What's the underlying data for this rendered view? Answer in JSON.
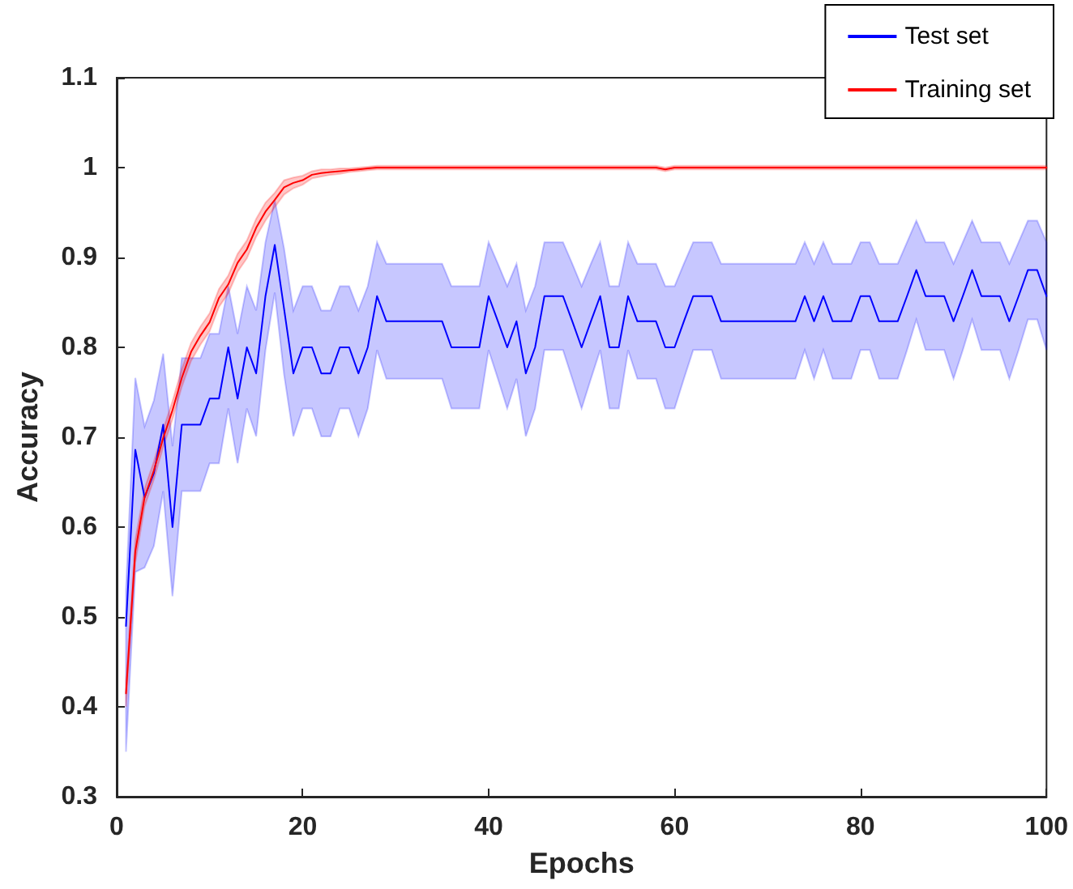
{
  "chart_data": {
    "type": "line",
    "xlabel": "Epochs",
    "ylabel": "Accuracy",
    "x": [
      1,
      2,
      3,
      4,
      5,
      6,
      7,
      8,
      9,
      10,
      11,
      12,
      13,
      14,
      15,
      16,
      17,
      18,
      19,
      20,
      21,
      22,
      23,
      24,
      25,
      26,
      27,
      28,
      29,
      30,
      31,
      32,
      33,
      34,
      35,
      36,
      37,
      38,
      39,
      40,
      41,
      42,
      43,
      44,
      45,
      46,
      47,
      48,
      49,
      50,
      51,
      52,
      53,
      54,
      55,
      56,
      57,
      58,
      59,
      60,
      61,
      62,
      63,
      64,
      65,
      66,
      67,
      68,
      69,
      70,
      71,
      72,
      73,
      74,
      75,
      76,
      77,
      78,
      79,
      80,
      81,
      82,
      83,
      84,
      85,
      86,
      87,
      88,
      89,
      90,
      91,
      92,
      93,
      94,
      95,
      96,
      97,
      98,
      99,
      100
    ],
    "series": [
      {
        "name": "Test set",
        "color": "#0000ff",
        "values": [
          0.49,
          0.686,
          0.633,
          0.66,
          0.714,
          0.6,
          0.714,
          0.714,
          0.714,
          0.743,
          0.743,
          0.8,
          0.743,
          0.8,
          0.771,
          0.857,
          0.914,
          0.843,
          0.771,
          0.8,
          0.8,
          0.771,
          0.771,
          0.8,
          0.8,
          0.771,
          0.8,
          0.857,
          0.829,
          0.829,
          0.829,
          0.829,
          0.829,
          0.829,
          0.829,
          0.8,
          0.8,
          0.8,
          0.8,
          0.857,
          0.829,
          0.8,
          0.829,
          0.771,
          0.8,
          0.857,
          0.857,
          0.857,
          0.829,
          0.8,
          0.829,
          0.857,
          0.8,
          0.8,
          0.857,
          0.829,
          0.829,
          0.829,
          0.8,
          0.8,
          0.829,
          0.857,
          0.857,
          0.857,
          0.829,
          0.829,
          0.829,
          0.829,
          0.829,
          0.829,
          0.829,
          0.829,
          0.829,
          0.857,
          0.829,
          0.857,
          0.829,
          0.829,
          0.829,
          0.857,
          0.857,
          0.829,
          0.829,
          0.829,
          0.857,
          0.886,
          0.857,
          0.857,
          0.857,
          0.829,
          0.857,
          0.886,
          0.857,
          0.857,
          0.857,
          0.829,
          0.857,
          0.886,
          0.886,
          0.857
        ],
        "lower": [
          0.35,
          0.55,
          0.555,
          0.579,
          0.64,
          0.523,
          0.64,
          0.64,
          0.64,
          0.671,
          0.671,
          0.732,
          0.671,
          0.732,
          0.701,
          0.797,
          0.861,
          0.77,
          0.701,
          0.732,
          0.732,
          0.701,
          0.701,
          0.732,
          0.732,
          0.701,
          0.732,
          0.797,
          0.765,
          0.765,
          0.765,
          0.765,
          0.765,
          0.765,
          0.765,
          0.732,
          0.732,
          0.732,
          0.732,
          0.797,
          0.765,
          0.732,
          0.765,
          0.701,
          0.732,
          0.797,
          0.797,
          0.797,
          0.765,
          0.732,
          0.765,
          0.797,
          0.732,
          0.732,
          0.797,
          0.765,
          0.765,
          0.765,
          0.732,
          0.732,
          0.765,
          0.797,
          0.797,
          0.797,
          0.765,
          0.765,
          0.765,
          0.765,
          0.765,
          0.765,
          0.765,
          0.765,
          0.765,
          0.797,
          0.765,
          0.797,
          0.765,
          0.765,
          0.765,
          0.797,
          0.797,
          0.765,
          0.765,
          0.765,
          0.797,
          0.831,
          0.797,
          0.797,
          0.797,
          0.765,
          0.797,
          0.831,
          0.797,
          0.797,
          0.797,
          0.765,
          0.797,
          0.831,
          0.831,
          0.797
        ],
        "upper": [
          0.53,
          0.766,
          0.712,
          0.741,
          0.793,
          0.69,
          0.788,
          0.788,
          0.788,
          0.815,
          0.815,
          0.868,
          0.815,
          0.868,
          0.841,
          0.917,
          0.964,
          0.91,
          0.841,
          0.868,
          0.868,
          0.841,
          0.841,
          0.868,
          0.868,
          0.841,
          0.868,
          0.917,
          0.893,
          0.893,
          0.893,
          0.893,
          0.893,
          0.893,
          0.893,
          0.868,
          0.868,
          0.868,
          0.868,
          0.917,
          0.893,
          0.868,
          0.893,
          0.841,
          0.868,
          0.917,
          0.917,
          0.917,
          0.893,
          0.868,
          0.893,
          0.917,
          0.868,
          0.868,
          0.917,
          0.893,
          0.893,
          0.893,
          0.868,
          0.868,
          0.893,
          0.917,
          0.917,
          0.917,
          0.893,
          0.893,
          0.893,
          0.893,
          0.893,
          0.893,
          0.893,
          0.893,
          0.893,
          0.917,
          0.893,
          0.917,
          0.893,
          0.893,
          0.893,
          0.917,
          0.917,
          0.893,
          0.893,
          0.893,
          0.917,
          0.941,
          0.917,
          0.917,
          0.917,
          0.893,
          0.917,
          0.941,
          0.917,
          0.917,
          0.917,
          0.893,
          0.917,
          0.941,
          0.941,
          0.917
        ]
      },
      {
        "name": "Training set",
        "color": "#ff0000",
        "values": [
          0.415,
          0.573,
          0.633,
          0.663,
          0.699,
          0.73,
          0.766,
          0.795,
          0.813,
          0.828,
          0.855,
          0.87,
          0.894,
          0.909,
          0.933,
          0.951,
          0.964,
          0.978,
          0.983,
          0.986,
          0.992,
          0.994,
          0.995,
          0.996,
          0.997,
          0.998,
          0.999,
          1,
          1,
          1,
          1,
          1,
          1,
          1,
          1,
          1,
          1,
          1,
          1,
          1,
          1,
          1,
          1,
          1,
          1,
          1,
          1,
          1,
          1,
          1,
          1,
          1,
          1,
          1,
          1,
          1,
          1,
          1,
          0.998,
          1,
          1,
          1,
          1,
          1,
          1,
          1,
          1,
          1,
          1,
          1,
          1,
          1,
          1,
          1,
          1,
          1,
          1,
          1,
          1,
          1,
          1,
          1,
          1,
          1,
          1,
          1,
          1,
          1,
          1,
          1,
          1,
          1,
          1,
          1,
          1,
          1,
          1,
          1,
          1,
          1
        ],
        "lower": [
          0.4,
          0.56,
          0.623,
          0.653,
          0.689,
          0.72,
          0.756,
          0.785,
          0.803,
          0.818,
          0.845,
          0.86,
          0.884,
          0.899,
          0.923,
          0.941,
          0.956,
          0.97,
          0.977,
          0.981,
          0.988,
          0.99,
          0.992,
          0.993,
          0.995,
          0.996,
          0.997,
          0.998,
          0.998,
          0.998,
          0.998,
          0.998,
          0.998,
          0.998,
          0.998,
          0.998,
          0.998,
          0.998,
          0.998,
          0.998,
          0.998,
          0.998,
          0.998,
          0.998,
          0.998,
          0.998,
          0.998,
          0.998,
          0.998,
          0.998,
          0.998,
          0.998,
          0.998,
          0.998,
          0.998,
          0.998,
          0.998,
          0.998,
          0.996,
          0.998,
          0.998,
          0.998,
          0.998,
          0.998,
          0.998,
          0.998,
          0.998,
          0.998,
          0.998,
          0.998,
          0.998,
          0.998,
          0.998,
          0.998,
          0.998,
          0.998,
          0.998,
          0.998,
          0.998,
          0.998,
          0.998,
          0.998,
          0.998,
          0.998,
          0.998,
          0.998,
          0.998,
          0.998,
          0.998,
          0.998,
          0.998,
          0.998,
          0.998,
          0.998,
          0.998,
          0.998,
          0.998,
          0.998,
          0.998,
          0.998
        ],
        "upper": [
          0.43,
          0.586,
          0.643,
          0.673,
          0.709,
          0.74,
          0.776,
          0.805,
          0.823,
          0.838,
          0.865,
          0.88,
          0.904,
          0.919,
          0.943,
          0.961,
          0.972,
          0.986,
          0.989,
          0.991,
          0.996,
          0.998,
          0.998,
          0.999,
          0.999,
          1,
          1.001,
          1.002,
          1.002,
          1.002,
          1.002,
          1.002,
          1.002,
          1.002,
          1.002,
          1.002,
          1.002,
          1.002,
          1.002,
          1.002,
          1.002,
          1.002,
          1.002,
          1.002,
          1.002,
          1.002,
          1.002,
          1.002,
          1.002,
          1.002,
          1.002,
          1.002,
          1.002,
          1.002,
          1.002,
          1.002,
          1.002,
          1.002,
          1,
          1.002,
          1.002,
          1.002,
          1.002,
          1.002,
          1.002,
          1.002,
          1.002,
          1.002,
          1.002,
          1.002,
          1.002,
          1.002,
          1.002,
          1.002,
          1.002,
          1.002,
          1.002,
          1.002,
          1.002,
          1.002,
          1.002,
          1.002,
          1.002,
          1.002,
          1.002,
          1.002,
          1.002,
          1.002,
          1.002,
          1.002,
          1.002,
          1.002,
          1.002,
          1.002,
          1.002,
          1.002,
          1.002,
          1.002,
          1.002,
          1.002
        ]
      }
    ],
    "xlim": [
      0,
      100
    ],
    "xticks": [
      0,
      20,
      40,
      60,
      80,
      100
    ],
    "ylim": [
      0.3,
      1.1
    ],
    "yticks": [
      0.3,
      0.4,
      0.5,
      0.6,
      0.7,
      0.8,
      0.9,
      1,
      1.1
    ],
    "grid": false,
    "legend": "top right",
    "marker": "none",
    "line_style": "solid"
  }
}
